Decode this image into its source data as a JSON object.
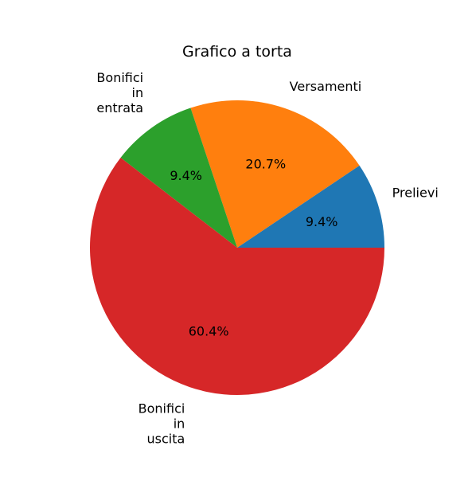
{
  "chart_data": {
    "type": "pie",
    "title": "Grafico a torta",
    "categories": [
      "Prelievi",
      "Versamenti",
      "Bonifici\nin\nentrata",
      "Bonifici\nin\nuscita"
    ],
    "values": [
      9.4,
      20.7,
      9.4,
      60.4
    ],
    "value_labels": [
      "9.4%",
      "20.7%",
      "9.4%",
      "60.4%"
    ],
    "colors": [
      "#1f77b4",
      "#ff7f0e",
      "#2ca02c",
      "#d62728"
    ],
    "start_angle_deg": 0,
    "direction": "counterclockwise",
    "legend": "none"
  }
}
